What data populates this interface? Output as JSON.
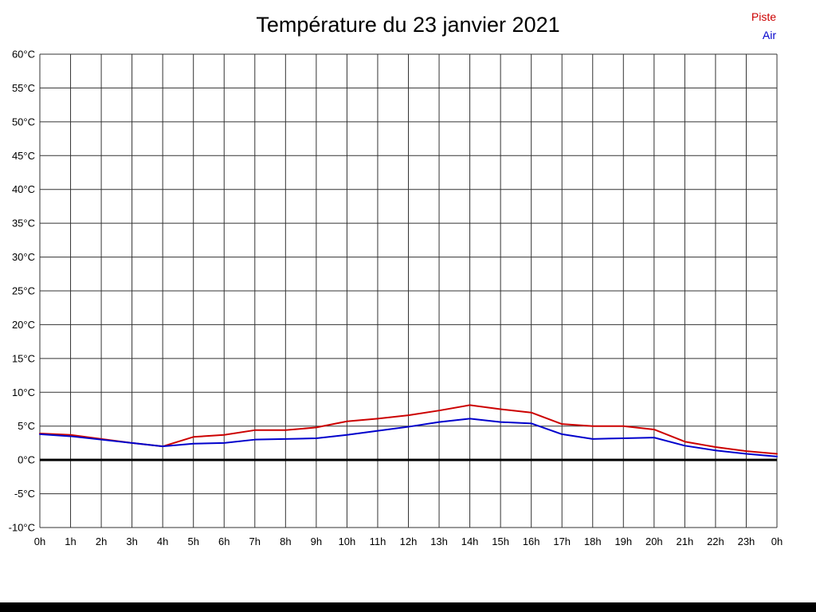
{
  "chart_data": {
    "type": "line",
    "title": "Température du 23 janvier 2021",
    "xlabel": "",
    "ylabel": "",
    "xlim": [
      0,
      24
    ],
    "ylim": [
      -10,
      60
    ],
    "grid": true,
    "zero_line": true,
    "legend_position": "top-right",
    "grid_color": "#333333",
    "zero_line_color": "#000000",
    "x": [
      0,
      1,
      2,
      3,
      4,
      5,
      6,
      7,
      8,
      9,
      10,
      11,
      12,
      13,
      14,
      15,
      16,
      17,
      18,
      19,
      20,
      21,
      22,
      23,
      24
    ],
    "x_ticks": [
      {
        "value": 0,
        "label": "0h"
      },
      {
        "value": 1,
        "label": "1h"
      },
      {
        "value": 2,
        "label": "2h"
      },
      {
        "value": 3,
        "label": "3h"
      },
      {
        "value": 4,
        "label": "4h"
      },
      {
        "value": 5,
        "label": "5h"
      },
      {
        "value": 6,
        "label": "6h"
      },
      {
        "value": 7,
        "label": "7h"
      },
      {
        "value": 8,
        "label": "8h"
      },
      {
        "value": 9,
        "label": "9h"
      },
      {
        "value": 10,
        "label": "10h"
      },
      {
        "value": 11,
        "label": "11h"
      },
      {
        "value": 12,
        "label": "12h"
      },
      {
        "value": 13,
        "label": "13h"
      },
      {
        "value": 14,
        "label": "14h"
      },
      {
        "value": 15,
        "label": "15h"
      },
      {
        "value": 16,
        "label": "16h"
      },
      {
        "value": 17,
        "label": "17h"
      },
      {
        "value": 18,
        "label": "18h"
      },
      {
        "value": 19,
        "label": "19h"
      },
      {
        "value": 20,
        "label": "20h"
      },
      {
        "value": 21,
        "label": "21h"
      },
      {
        "value": 22,
        "label": "22h"
      },
      {
        "value": 23,
        "label": "23h"
      },
      {
        "value": 24,
        "label": "0h"
      }
    ],
    "y_ticks": [
      {
        "value": 60,
        "label": "60°C"
      },
      {
        "value": 55,
        "label": "55°C"
      },
      {
        "value": 50,
        "label": "50°C"
      },
      {
        "value": 45,
        "label": "45°C"
      },
      {
        "value": 40,
        "label": "40°C"
      },
      {
        "value": 35,
        "label": "35°C"
      },
      {
        "value": 30,
        "label": "30°C"
      },
      {
        "value": 25,
        "label": "25°C"
      },
      {
        "value": 20,
        "label": "20°C"
      },
      {
        "value": 15,
        "label": "15°C"
      },
      {
        "value": 10,
        "label": "10°C"
      },
      {
        "value": 5,
        "label": "5°C"
      },
      {
        "value": 0,
        "label": "0°C"
      },
      {
        "value": -5,
        "label": "-5°C"
      },
      {
        "value": -10,
        "label": "-10°C"
      }
    ],
    "series": [
      {
        "name": "Piste",
        "color": "#cc0000",
        "values": [
          3.9,
          3.7,
          3.1,
          2.5,
          2.0,
          3.4,
          3.7,
          4.4,
          4.4,
          4.8,
          5.7,
          6.1,
          6.6,
          7.3,
          8.1,
          7.5,
          7.0,
          5.3,
          5.0,
          5.0,
          4.5,
          2.7,
          1.9,
          1.3,
          0.9
        ]
      },
      {
        "name": "Air",
        "color": "#0000cc",
        "values": [
          3.8,
          3.5,
          3.0,
          2.5,
          2.0,
          2.4,
          2.5,
          3.0,
          3.1,
          3.2,
          3.7,
          4.3,
          4.9,
          5.6,
          6.1,
          5.6,
          5.4,
          3.8,
          3.1,
          3.2,
          3.3,
          2.1,
          1.4,
          0.9,
          0.5
        ]
      }
    ]
  }
}
